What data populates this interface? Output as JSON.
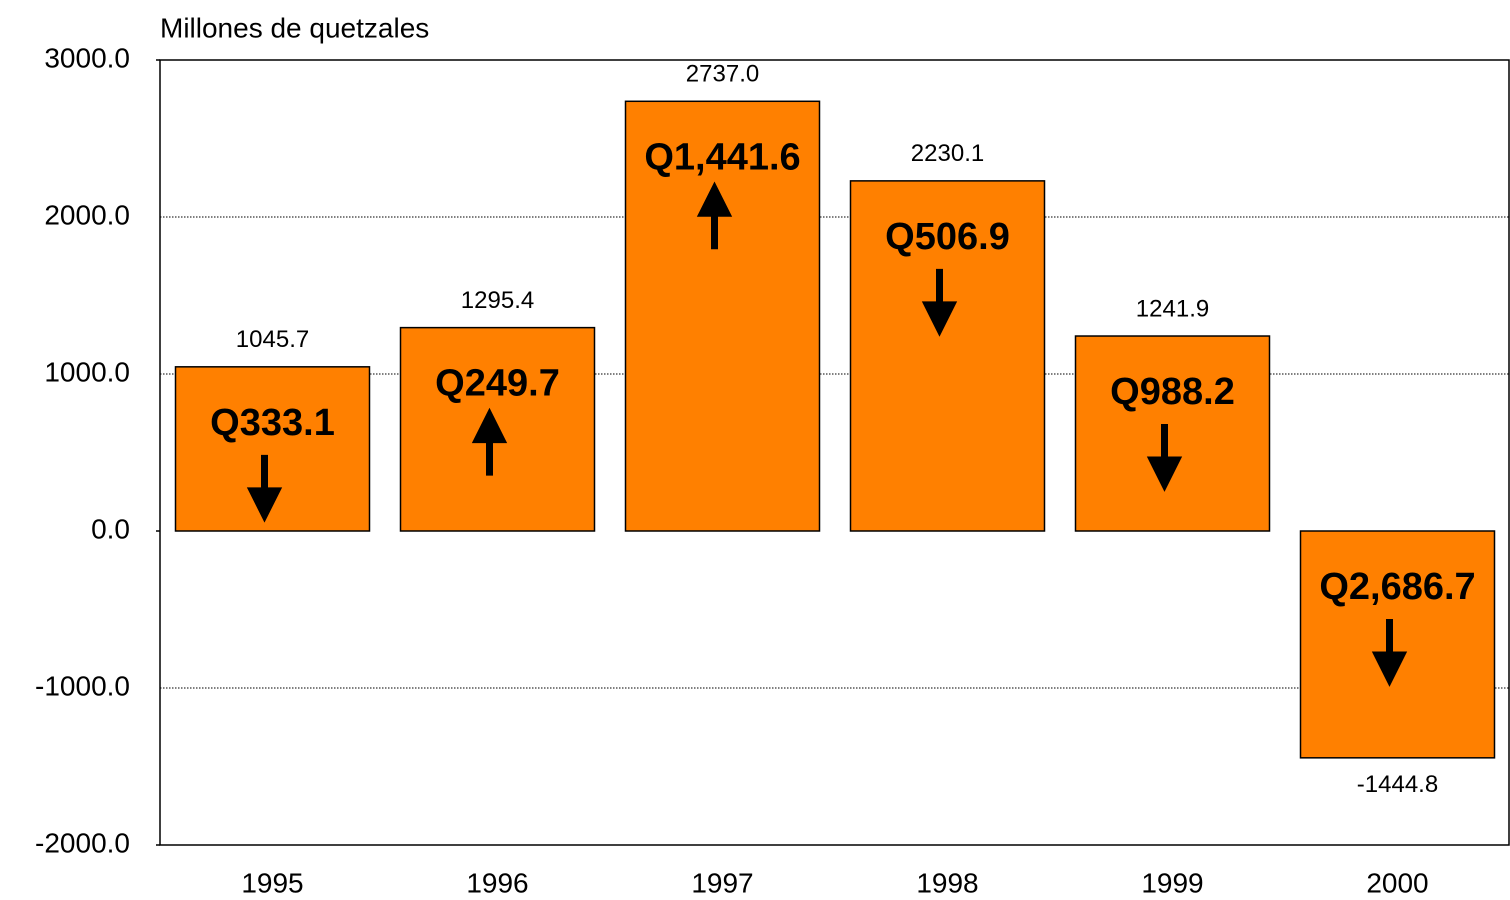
{
  "chart_data": {
    "type": "bar",
    "y_axis_label": "Millones de quetzales",
    "categories": [
      "1995",
      "1996",
      "1997",
      "1998",
      "1999",
      "2000"
    ],
    "values": [
      1045.7,
      1295.4,
      2737.0,
      2230.1,
      1241.9,
      -1444.8
    ],
    "value_labels": [
      "1045.7",
      "1295.4",
      "2737.0",
      "2230.1",
      "1241.9",
      "-1444.8"
    ],
    "color": "#ff8000",
    "ylim": [
      -2000,
      3000
    ],
    "yticks": [
      {
        "value": -2000,
        "label": "-2000.0"
      },
      {
        "value": -1000,
        "label": "-1000.0"
      },
      {
        "value": 0,
        "label": "0.0"
      },
      {
        "value": 1000,
        "label": "1000.0"
      },
      {
        "value": 2000,
        "label": "2000.0"
      },
      {
        "value": 3000,
        "label": "3000.0"
      }
    ],
    "grid": true,
    "annotations": [
      {
        "text": "Q333.1",
        "direction": "down"
      },
      {
        "text": "Q249.7",
        "direction": "up"
      },
      {
        "text": "Q1,441.6",
        "direction": "up"
      },
      {
        "text": "Q506.9",
        "direction": "down"
      },
      {
        "text": "Q988.2",
        "direction": "down"
      },
      {
        "text": "Q2,686.7",
        "direction": "down"
      }
    ]
  }
}
